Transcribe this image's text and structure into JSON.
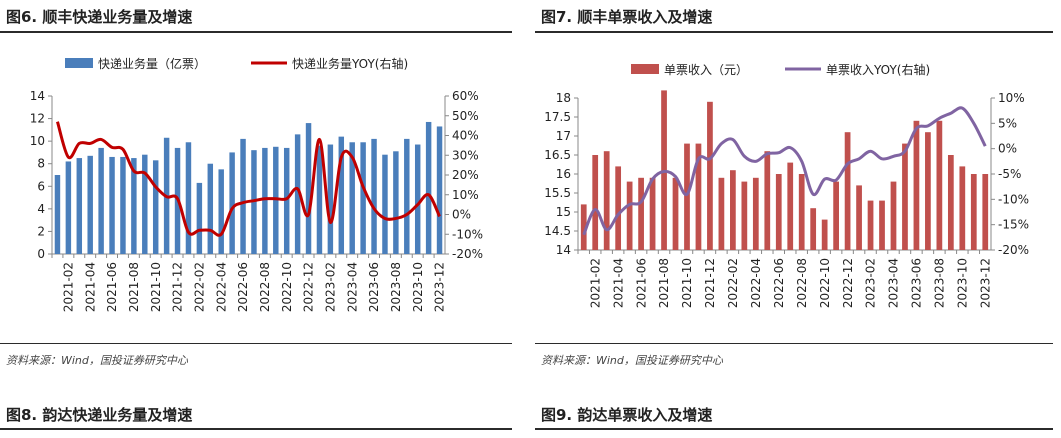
{
  "left_panel": {
    "title": "图6. 顺丰快递业务量及增速",
    "source": "资料来源：Wind，国投证券研究中心",
    "next_title": "图8. 韵达快递业务量及增速"
  },
  "right_panel": {
    "title": "图7. 顺丰单票收入及增速",
    "source": "资料来源：Wind，国投证券研究中心",
    "next_title": "图9. 韵达单票收入及增速"
  },
  "colors": {
    "left_bar": "#4A7EBB",
    "left_line": "#C00000",
    "right_bar": "#C0504D",
    "right_line": "#8064A2"
  },
  "chart_data": [
    {
      "type": "bar",
      "title": "图6. 顺丰快递业务量及增速",
      "categories": [
        "2021-01",
        "2021-02",
        "2021-03",
        "2021-04",
        "2021-05",
        "2021-06",
        "2021-07",
        "2021-08",
        "2021-09",
        "2021-10",
        "2021-11",
        "2021-12",
        "2022-01",
        "2022-02",
        "2022-03",
        "2022-04",
        "2022-05",
        "2022-06",
        "2022-07",
        "2022-08",
        "2022-09",
        "2022-10",
        "2022-11",
        "2022-12",
        "2023-01",
        "2023-02",
        "2023-03",
        "2023-04",
        "2023-05",
        "2023-06",
        "2023-07",
        "2023-08",
        "2023-09",
        "2023-10",
        "2023-11",
        "2023-12"
      ],
      "x_tick_labels": [
        "2021-02",
        "2021-04",
        "2021-06",
        "2021-08",
        "2021-10",
        "2021-12",
        "2022-02",
        "2022-04",
        "2022-06",
        "2022-08",
        "2022-10",
        "2022-12",
        "2023-02",
        "2023-04",
        "2023-06",
        "2023-08",
        "2023-10",
        "2023-12"
      ],
      "series": [
        {
          "name": "快递业务量（亿票）",
          "type": "bar",
          "axis": "left",
          "values": [
            7.0,
            8.2,
            8.5,
            8.7,
            9.4,
            8.6,
            8.6,
            8.5,
            8.8,
            8.3,
            10.3,
            9.4,
            9.9,
            6.3,
            8.0,
            7.5,
            9.0,
            10.2,
            9.2,
            9.4,
            9.5,
            9.4,
            10.6,
            11.6,
            9.6,
            9.7,
            10.4,
            9.9,
            9.9,
            10.2,
            8.8,
            9.1,
            10.2,
            9.7,
            11.7,
            11.3
          ]
        },
        {
          "name": "快递业务量YOY(右轴)",
          "type": "line",
          "axis": "right",
          "values": [
            47,
            29,
            36,
            36,
            38,
            34,
            33,
            22,
            21,
            14,
            9,
            8,
            -9,
            -8,
            -8,
            -10,
            3,
            6,
            7,
            8,
            8,
            8,
            13,
            0,
            38,
            -4,
            29,
            29,
            14,
            3,
            -2,
            -2,
            0,
            5,
            10,
            -1
          ]
        }
      ],
      "left_axis": {
        "ticks": [
          "0",
          "2",
          "4",
          "6",
          "8",
          "10",
          "12",
          "14"
        ],
        "ylim": [
          0,
          14
        ]
      },
      "right_axis": {
        "ticks": [
          "-20%",
          "-10%",
          "0%",
          "10%",
          "20%",
          "30%",
          "40%",
          "50%",
          "60%"
        ],
        "ylim": [
          -20,
          60
        ]
      },
      "legend_position": "top"
    },
    {
      "type": "bar",
      "title": "图7. 顺丰单票收入及增速",
      "categories": [
        "2021-01",
        "2021-02",
        "2021-03",
        "2021-04",
        "2021-05",
        "2021-06",
        "2021-07",
        "2021-08",
        "2021-09",
        "2021-10",
        "2021-11",
        "2021-12",
        "2022-01",
        "2022-02",
        "2022-03",
        "2022-04",
        "2022-05",
        "2022-06",
        "2022-07",
        "2022-08",
        "2022-09",
        "2022-10",
        "2022-11",
        "2022-12",
        "2023-01",
        "2023-02",
        "2023-03",
        "2023-04",
        "2023-05",
        "2023-06",
        "2023-07",
        "2023-08",
        "2023-09",
        "2023-10",
        "2023-11",
        "2023-12"
      ],
      "x_tick_labels": [
        "2021-02",
        "2021-04",
        "2021-06",
        "2021-08",
        "2021-10",
        "2021-12",
        "2022-02",
        "2022-04",
        "2022-06",
        "2022-08",
        "2022-10",
        "2022-12",
        "2023-02",
        "2023-04",
        "2023-06",
        "2023-08",
        "2023-10",
        "2023-12"
      ],
      "series": [
        {
          "name": "单票收入（元）",
          "type": "bar",
          "axis": "left",
          "values": [
            15.2,
            16.5,
            16.6,
            16.2,
            15.8,
            15.9,
            15.9,
            18.2,
            15.9,
            16.8,
            16.8,
            17.9,
            15.9,
            16.1,
            15.8,
            15.9,
            16.6,
            16.0,
            16.3,
            16.0,
            15.1,
            14.8,
            15.8,
            17.1,
            15.7,
            15.3,
            15.3,
            15.8,
            16.8,
            17.4,
            17.1,
            17.4,
            16.5,
            16.2,
            16.0,
            16.0
          ]
        },
        {
          "name": "单票收入YOY(右轴)",
          "type": "line",
          "axis": "right",
          "values": [
            -17,
            -12,
            -16,
            -13,
            -11,
            -10.5,
            -6,
            -4.5,
            -5.5,
            -9,
            -2,
            -2,
            1,
            1.8,
            -1.5,
            -2.5,
            -1,
            -0.8,
            0.2,
            -2.5,
            -9,
            -6,
            -6.2,
            -3,
            -2,
            -0.5,
            -2,
            -1.5,
            -0.5,
            4,
            4.5,
            6,
            7,
            8,
            5,
            0.5
          ]
        }
      ],
      "left_axis": {
        "ticks": [
          "14",
          "14.5",
          "15",
          "15.5",
          "16",
          "16.5",
          "17",
          "17.5",
          "18"
        ],
        "ylim": [
          14,
          18
        ]
      },
      "right_axis": {
        "ticks": [
          "-20%",
          "-15%",
          "-10%",
          "-5%",
          "0%",
          "5%",
          "10%"
        ],
        "ylim": [
          -20,
          10
        ]
      },
      "legend_position": "top"
    }
  ]
}
